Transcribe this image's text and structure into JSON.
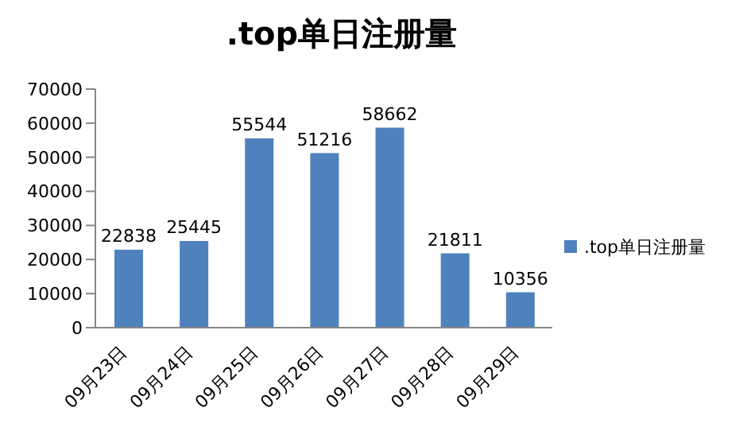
{
  "chart_data": {
    "type": "bar",
    "title": ".top单日注册量",
    "categories": [
      "09月23日",
      "09月24日",
      "09月25日",
      "09月26日",
      "09月27日",
      "09月28日",
      "09月29日"
    ],
    "series": [
      {
        "name": ".top单日注册量",
        "color": "#4f81bd",
        "values": [
          22838,
          25445,
          55544,
          51216,
          58662,
          21811,
          10356
        ]
      }
    ],
    "ylim": [
      0,
      70000
    ],
    "yticks": [
      0,
      10000,
      20000,
      30000,
      40000,
      50000,
      60000,
      70000
    ],
    "data_labels": true,
    "grid": false,
    "legend": "right"
  }
}
